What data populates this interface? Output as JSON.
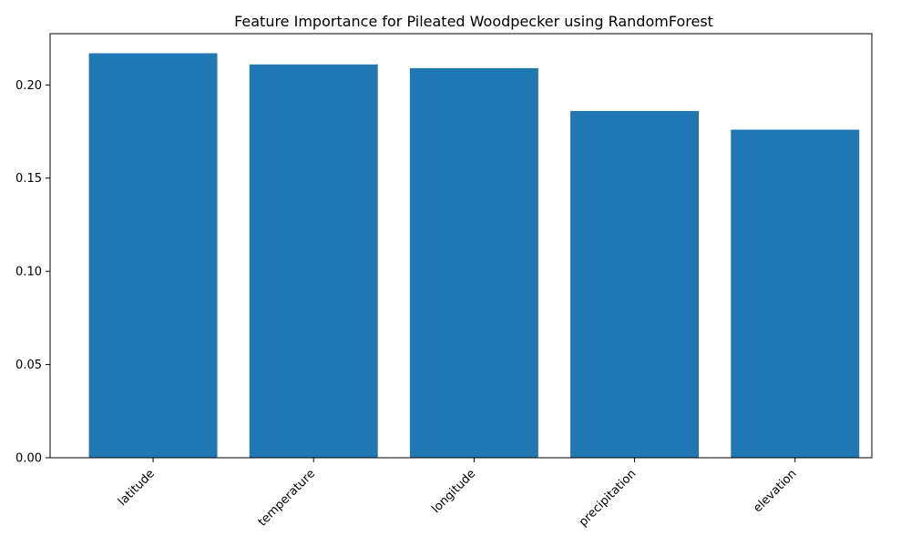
{
  "chart_data": {
    "type": "bar",
    "title": "Feature Importance for Pileated Woodpecker using RandomForest",
    "xlabel": "",
    "ylabel": "",
    "categories": [
      "latitude",
      "temperature",
      "longitude",
      "precipitation",
      "elevation"
    ],
    "values": [
      0.217,
      0.211,
      0.209,
      0.186,
      0.176
    ],
    "ylim": [
      0,
      0.2275
    ],
    "yticks": [
      0.0,
      0.05,
      0.1,
      0.15,
      0.2
    ],
    "ytick_labels": [
      "0.00",
      "0.05",
      "0.10",
      "0.15",
      "0.20"
    ],
    "bar_color": "#1f77b4",
    "grid": false,
    "legend": "none",
    "xtick_rotation": "45° (right-aligned)"
  }
}
